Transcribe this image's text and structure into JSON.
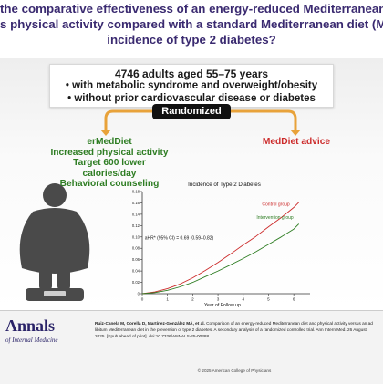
{
  "question": {
    "line1": "the comparative effectiveness of an energy-reduced Mediterranean diet (erM",
    "line2": "s physical activity compared with a standard Mediterranean diet (MedDiet) or",
    "line3": "incidence of type 2 diabetes?"
  },
  "population": {
    "headline": "4746 adults aged 55–75 years",
    "bullet1": "• with metabolic syndrome and overweight/obesity",
    "bullet2": "• without prior cardiovascular disease or diabetes"
  },
  "randomized_label": "Randomized",
  "arm_intervention": {
    "title": "erMedDiet",
    "line1": "Increased physical activity",
    "line2": "Target 600 lower calories/day",
    "line3": "Behavioral counseling"
  },
  "arm_control": {
    "title": "MedDiet advice"
  },
  "colors": {
    "purple": "#4b3a85",
    "green": "#2e7d23",
    "red": "#cc2a2a",
    "figure": "#4a4a4a"
  },
  "icons": {
    "person": "person-on-scale-icon"
  },
  "chart_data": {
    "type": "line",
    "title": "Incidence of Type 2 Diabetes",
    "xlabel": "Year of Follow up",
    "ylabel": "",
    "xlim": [
      0,
      6.5
    ],
    "ylim": [
      0,
      0.18
    ],
    "x_ticks": [
      "0",
      "1",
      "2",
      "3",
      "4",
      "5",
      "6"
    ],
    "y_ticks": [
      "0",
      "0.02",
      "0.04",
      "0.06",
      "0.08",
      "0.10",
      "0.12",
      "0.14",
      "0.16",
      "0.18"
    ],
    "annotation": "aHR* (95% CI) = 0.69 (0.59–0.82)",
    "series": [
      {
        "name": "Control group",
        "color": "#cc2a2a",
        "x": [
          0,
          0.5,
          1,
          1.5,
          2,
          2.5,
          3,
          3.5,
          4,
          4.5,
          5,
          5.5,
          6,
          6.2
        ],
        "y": [
          0,
          0.003,
          0.009,
          0.017,
          0.028,
          0.041,
          0.055,
          0.07,
          0.086,
          0.101,
          0.118,
          0.134,
          0.152,
          0.161
        ]
      },
      {
        "name": "Intervention group",
        "color": "#2e7d23",
        "x": [
          0,
          0.5,
          1,
          1.5,
          2,
          2.5,
          3,
          3.5,
          4,
          4.5,
          5,
          5.5,
          6,
          6.2
        ],
        "y": [
          0,
          0.002,
          0.006,
          0.012,
          0.02,
          0.03,
          0.04,
          0.051,
          0.062,
          0.074,
          0.087,
          0.1,
          0.114,
          0.123
        ]
      }
    ]
  },
  "footer": {
    "logo_main": "Annals",
    "logo_sub": "of Internal Medicine",
    "citation_authors": "Ruiz-Canela M, Corella D, Martínez-González MÁ, et al.",
    "citation_text": " Comparison of an energy-reduced Mediterranean diet and physical activity versus an ad libitum Mediterranean diet in the prevention of type 2 diabetes. A secondary analysis of a randomized controlled trial. Ann Intern Med. 26 August 2025. [Epub ahead of print]. doi:10.7326/ANNALS-25-00388",
    "copyright": "© 2025 American College of Physicians"
  }
}
